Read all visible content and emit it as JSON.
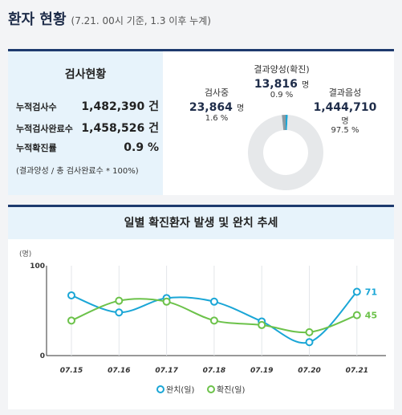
{
  "header": {
    "title": "환자 현황",
    "subtitle": "(7.21. 00시 기준, 1.3 이후 누계)"
  },
  "test_status": {
    "title": "검사현황",
    "rows": [
      {
        "label": "누적검사수",
        "value": "1,482,390 건"
      },
      {
        "label": "누적검사완료수",
        "value": "1,458,526 건"
      },
      {
        "label": "누적확진률",
        "value": "0.9 %"
      }
    ],
    "note": "(결과양성 / 총 검사완료수 * 100%)"
  },
  "donut": {
    "positive": {
      "name": "결과양성(확진)",
      "value": "13,816",
      "unit": "명",
      "pct": "0.9 %",
      "share": 0.9
    },
    "testing": {
      "name": "검사중",
      "value": "23,864",
      "unit": "명",
      "pct": "1.6 %",
      "share": 1.6
    },
    "negative": {
      "name": "결과음성",
      "value": "1,444,710",
      "unit": "명",
      "pct": "97.5 %",
      "share": 97.5
    },
    "colors": {
      "positive": "#1aa6d6",
      "testing": "#8a9aa3",
      "negative": "#e6e8ea"
    }
  },
  "chart_data": {
    "type": "line",
    "title": "일별 확진환자 발생 및 완치 추세",
    "unit_label": "(명)",
    "categories": [
      "07.15",
      "07.16",
      "07.17",
      "07.18",
      "07.19",
      "07.20",
      "07.21"
    ],
    "ylim": [
      0,
      100
    ],
    "yticks": [
      "100",
      "0"
    ],
    "series": [
      {
        "name": "완치(일)",
        "color": "#1aa6d6",
        "values": [
          67,
          48,
          64,
          60,
          38,
          15,
          71
        ],
        "end_label": "71"
      },
      {
        "name": "확진(일)",
        "color": "#6cc24a",
        "values": [
          39,
          61,
          60,
          39,
          34,
          26,
          45
        ],
        "end_label": "45"
      }
    ]
  }
}
